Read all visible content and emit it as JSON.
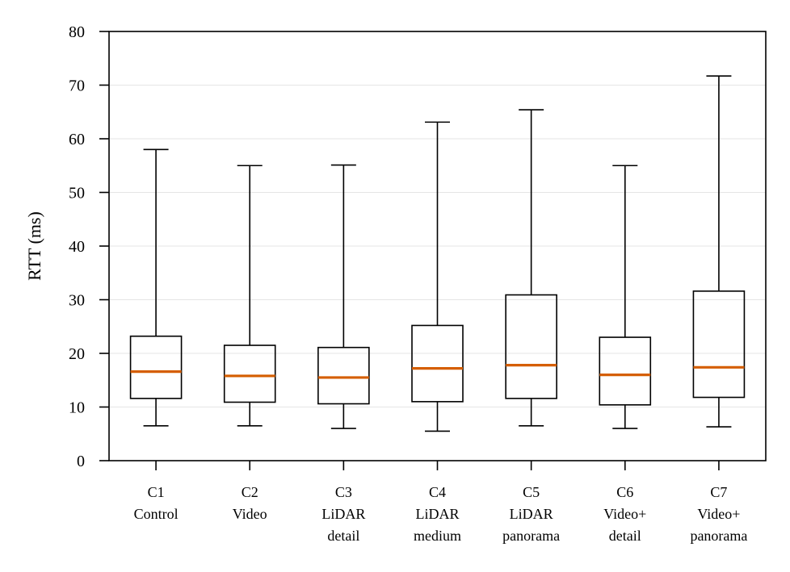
{
  "chart_data": {
    "type": "boxplot",
    "ylabel": "RTT (ms)",
    "ylim": [
      0,
      80
    ],
    "yticks": [
      0,
      10,
      20,
      30,
      40,
      50,
      60,
      70,
      80
    ],
    "grid": "horizontal",
    "colors": {
      "box": "#000000",
      "median": "#D55E00",
      "grid": "#e5e5e5"
    },
    "categories": [
      {
        "lines": [
          "C1",
          "Control"
        ],
        "whislo": 6.5,
        "q1": 11.6,
        "median": 16.6,
        "q3": 23.2,
        "whishi": 58.0
      },
      {
        "lines": [
          "C2",
          "Video"
        ],
        "whislo": 6.5,
        "q1": 10.9,
        "median": 15.8,
        "q3": 21.5,
        "whishi": 55.0
      },
      {
        "lines": [
          "C3",
          "LiDAR",
          "detail"
        ],
        "whislo": 6.0,
        "q1": 10.6,
        "median": 15.5,
        "q3": 21.1,
        "whishi": 55.1
      },
      {
        "lines": [
          "C4",
          "LiDAR",
          "medium"
        ],
        "whislo": 5.5,
        "q1": 11.0,
        "median": 17.2,
        "q3": 25.2,
        "whishi": 63.1
      },
      {
        "lines": [
          "C5",
          "LiDAR",
          "panorama"
        ],
        "whislo": 6.5,
        "q1": 11.6,
        "median": 17.8,
        "q3": 30.9,
        "whishi": 65.4
      },
      {
        "lines": [
          "C6",
          "Video+",
          "detail"
        ],
        "whislo": 6.0,
        "q1": 10.4,
        "median": 16.0,
        "q3": 23.0,
        "whishi": 55.0
      },
      {
        "lines": [
          "C7",
          "Video+",
          "panorama"
        ],
        "whislo": 6.3,
        "q1": 11.8,
        "median": 17.4,
        "q3": 31.6,
        "whishi": 71.7
      }
    ]
  }
}
